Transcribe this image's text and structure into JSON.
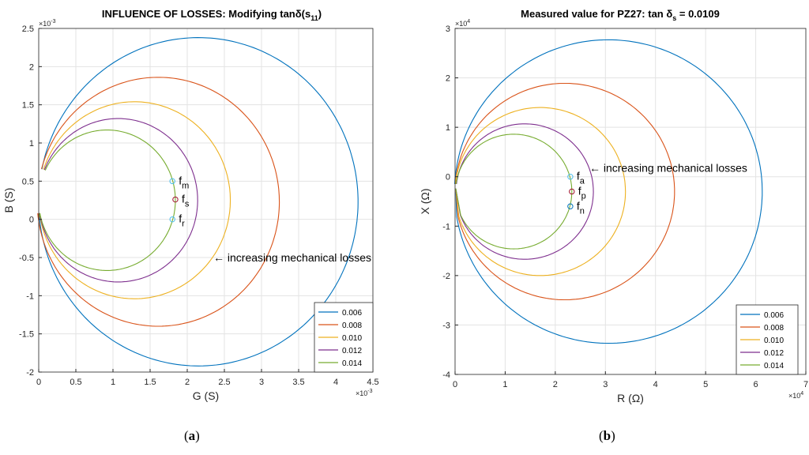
{
  "chart_data": [
    {
      "type": "line",
      "panel_label_prefix": "(",
      "panel_label_letter": "a",
      "panel_label_suffix": ")",
      "title": "INFLUENCE OF LOSSES: Modifying tanδ(s",
      "title_subscript": "11",
      "title_close": ")",
      "xlabel": "G (S)",
      "ylabel": "B (S)",
      "xlim": [
        0,
        4.5
      ],
      "ylim": [
        -2,
        2.5
      ],
      "xticks": [
        0,
        0.5,
        1,
        1.5,
        2,
        2.5,
        3,
        3.5,
        4,
        4.5
      ],
      "xtick_labels": [
        "0",
        "0.5",
        "1",
        "1.5",
        "2",
        "2.5",
        "3",
        "3.5",
        "4",
        "4.5"
      ],
      "yticks": [
        -2,
        -1.5,
        -1,
        -0.5,
        0,
        0.5,
        1,
        1.5,
        2,
        2.5
      ],
      "ytick_labels": [
        "-2",
        "-1.5",
        "-1",
        "-0.5",
        "0",
        "0.5",
        "1",
        "1.5",
        "2",
        "2.5"
      ],
      "x_exponent": "×10",
      "x_exponent_power": "-3",
      "y_exponent": "×10",
      "y_exponent_power": "-3",
      "grid": true,
      "legend_position": "bottom-right",
      "series": [
        {
          "name": "0.006",
          "color": "#0072BD",
          "center": [
            2.15,
            0.23
          ],
          "radius": 2.15,
          "start_point": [
            0.07,
            0.65
          ],
          "end_point": [
            0.01,
            0.08
          ]
        },
        {
          "name": "0.008",
          "color": "#D95319",
          "center": [
            1.61,
            0.23
          ],
          "radius": 1.63,
          "start_point": [
            0.07,
            0.65
          ],
          "end_point": [
            0.01,
            0.08
          ]
        },
        {
          "name": "0.010",
          "color": "#EDB120",
          "center": [
            1.29,
            0.25
          ],
          "radius": 1.29,
          "start_point": [
            0.07,
            0.65
          ],
          "end_point": [
            0.01,
            0.08
          ]
        },
        {
          "name": "0.012",
          "color": "#7E2F8E",
          "center": [
            1.07,
            0.25
          ],
          "radius": 1.07,
          "start_point": [
            0.07,
            0.65
          ],
          "end_point": [
            0.01,
            0.08
          ]
        },
        {
          "name": "0.014",
          "color": "#77AC30",
          "center": [
            0.92,
            0.25
          ],
          "radius": 0.92,
          "start_point": [
            0.07,
            0.65
          ],
          "end_point": [
            0.01,
            0.08
          ]
        }
      ],
      "markers": [
        {
          "label": "f",
          "subscript": "m",
          "x": 1.8,
          "y": 0.5,
          "color": "#4DBEEE"
        },
        {
          "label": "f",
          "subscript": "s",
          "x": 1.84,
          "y": 0.26,
          "color": "#A2142F"
        },
        {
          "label": "f",
          "subscript": "r",
          "x": 1.8,
          "y": 0.0,
          "color": "#4DBEEE"
        }
      ],
      "annotation": "← increasing mechanical losses",
      "annotation_at": [
        2.5,
        -0.5
      ]
    },
    {
      "type": "line",
      "panel_label_prefix": "(",
      "panel_label_letter": "b",
      "panel_label_suffix": ")",
      "title": "Measured value for PZ27: tan δ",
      "title_subscript": "s",
      "title_close": " = 0.0109",
      "xlabel": "R (Ω)",
      "ylabel": "X (Ω)",
      "xlim": [
        0,
        7
      ],
      "ylim": [
        -4,
        3
      ],
      "xticks": [
        0,
        1,
        2,
        3,
        4,
        5,
        6,
        7
      ],
      "xtick_labels": [
        "0",
        "1",
        "2",
        "3",
        "4",
        "5",
        "6",
        "7"
      ],
      "yticks": [
        -4,
        -3,
        -2,
        -1,
        0,
        1,
        2,
        3
      ],
      "ytick_labels": [
        "-4",
        "-3",
        "-2",
        "-1",
        "0",
        "1",
        "2",
        "3"
      ],
      "x_exponent": "×10",
      "x_exponent_power": "4",
      "y_exponent": "×10",
      "y_exponent_power": "4",
      "grid": true,
      "legend_position": "bottom-right",
      "series": [
        {
          "name": "0.006",
          "color": "#0072BD",
          "center": [
            3.06,
            -0.3
          ],
          "radius": 3.07,
          "start_point": [
            0.04,
            -0.15
          ],
          "end_point": [
            0.06,
            -0.8
          ]
        },
        {
          "name": "0.008",
          "color": "#D95319",
          "center": [
            2.19,
            -0.3
          ],
          "radius": 2.19,
          "start_point": [
            0.04,
            -0.15
          ],
          "end_point": [
            0.06,
            -0.8
          ]
        },
        {
          "name": "0.010",
          "color": "#EDB120",
          "center": [
            1.7,
            -0.3
          ],
          "radius": 1.7,
          "start_point": [
            0.04,
            -0.15
          ],
          "end_point": [
            0.06,
            -0.8
          ]
        },
        {
          "name": "0.012",
          "color": "#7E2F8E",
          "center": [
            1.39,
            -0.3
          ],
          "radius": 1.37,
          "start_point": [
            0.04,
            -0.15
          ],
          "end_point": [
            0.06,
            -0.8
          ]
        },
        {
          "name": "0.014",
          "color": "#77AC30",
          "center": [
            1.17,
            -0.3
          ],
          "radius": 1.16,
          "start_point": [
            0.04,
            -0.15
          ],
          "end_point": [
            0.06,
            -0.8
          ]
        }
      ],
      "markers": [
        {
          "label": "f",
          "subscript": "a",
          "x": 2.3,
          "y": 0.0,
          "color": "#4DBEEE"
        },
        {
          "label": "f",
          "subscript": "p",
          "x": 2.33,
          "y": -0.3,
          "color": "#A2142F"
        },
        {
          "label": "f",
          "subscript": "n",
          "x": 2.3,
          "y": -0.6,
          "color": "#0072BD"
        }
      ],
      "annotation": "← increasing mechanical losses",
      "annotation_at": [
        2.9,
        0.18
      ]
    }
  ]
}
